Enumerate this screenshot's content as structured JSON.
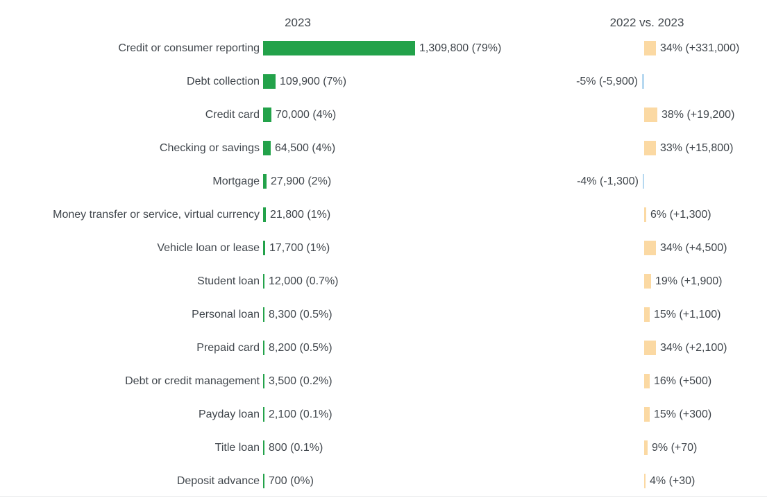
{
  "chart_data": {
    "type": "bar",
    "orientation": "horizontal",
    "diverging_right_column": true,
    "grid": false,
    "legend": "none",
    "column_headers": [
      "2023",
      "2022 vs. 2023"
    ],
    "categories": [
      "Credit or consumer reporting",
      "Debt collection",
      "Credit card",
      "Checking or savings",
      "Mortgage",
      "Money transfer or service, virtual currency",
      "Vehicle loan or lease",
      "Student loan",
      "Personal loan",
      "Prepaid card",
      "Debt or credit management",
      "Payday loan",
      "Title loan",
      "Deposit advance"
    ],
    "series": [
      {
        "name": "2023 complaint volume",
        "values": [
          1309800,
          109900,
          70000,
          64500,
          27900,
          21800,
          17700,
          12000,
          8300,
          8200,
          3500,
          2100,
          800,
          700
        ],
        "data_labels": [
          "1,309,800 (79%)",
          "109,900 (7%)",
          "70,000 (4%)",
          "64,500 (4%)",
          "27,900 (2%)",
          "21,800 (1%)",
          "17,700 (1%)",
          "12,000 (0.7%)",
          "8,300 (0.5%)",
          "8,200 (0.5%)",
          "3,500 (0.2%)",
          "2,100 (0.1%)",
          "800 (0.1%)",
          "700 (0%)"
        ],
        "bar_color": "#23a24a"
      },
      {
        "name": "2022 vs. 2023 percent change",
        "values": [
          34,
          -5,
          38,
          33,
          -4,
          6,
          34,
          19,
          15,
          34,
          16,
          15,
          9,
          4
        ],
        "data_labels": [
          "34% (+331,000)",
          "-5% (-5,900)",
          "38% (+19,200)",
          "33% (+15,800)",
          "-4% (-1,300)",
          "6% (+1,300)",
          "34% (+4,500)",
          "19% (+1,900)",
          "15% (+1,100)",
          "34% (+2,100)",
          "16% (+500)",
          "15% (+300)",
          "9% (+70)",
          "4% (+30)"
        ],
        "bar_color_positive": "#fbd9a3",
        "bar_color_negative": "#b6d8f0"
      }
    ],
    "colors": {
      "volume_bar": "#23a24a",
      "increase_bar": "#fbd9a3",
      "decrease_bar": "#b6d8f0",
      "text": "#40464c"
    }
  }
}
